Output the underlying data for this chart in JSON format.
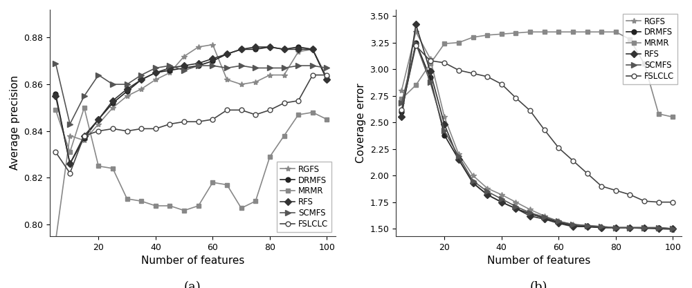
{
  "x": [
    5,
    10,
    15,
    20,
    25,
    30,
    35,
    40,
    45,
    50,
    55,
    60,
    65,
    70,
    75,
    80,
    85,
    90,
    95,
    100
  ],
  "left": {
    "ylabel": "Average precision",
    "xlabel": "Number of features",
    "ylim": [
      0.795,
      0.892
    ],
    "yticks": [
      0.8,
      0.82,
      0.84,
      0.86,
      0.88
    ],
    "caption": "(a)",
    "series": {
      "RGFS": {
        "color": "#888888",
        "marker": "*",
        "markersize": 6,
        "linewidth": 1.2,
        "markerfacecolor": "#888888",
        "values": [
          0.793,
          0.838,
          0.836,
          0.843,
          0.85,
          0.855,
          0.858,
          0.862,
          0.865,
          0.872,
          0.876,
          0.877,
          0.862,
          0.86,
          0.861,
          0.864,
          0.864,
          0.874,
          0.875,
          0.863
        ]
      },
      "DRMFS": {
        "color": "#222222",
        "marker": "o",
        "markersize": 5,
        "linewidth": 1.2,
        "markerfacecolor": "#222222",
        "values": [
          0.856,
          0.826,
          0.837,
          0.845,
          0.852,
          0.857,
          0.862,
          0.865,
          0.866,
          0.867,
          0.868,
          0.87,
          0.873,
          0.875,
          0.875,
          0.876,
          0.875,
          0.876,
          0.875,
          0.862
        ]
      },
      "MRMR": {
        "color": "#888888",
        "marker": "s",
        "markersize": 5,
        "linewidth": 1.2,
        "markerfacecolor": "#888888",
        "values": [
          0.849,
          0.831,
          0.85,
          0.825,
          0.824,
          0.811,
          0.81,
          0.808,
          0.808,
          0.806,
          0.808,
          0.818,
          0.817,
          0.807,
          0.81,
          0.829,
          0.838,
          0.847,
          0.848,
          0.845
        ]
      },
      "RFS": {
        "color": "#333333",
        "marker": "D",
        "markersize": 5,
        "linewidth": 1.2,
        "markerfacecolor": "#333333",
        "values": [
          0.855,
          0.826,
          0.838,
          0.845,
          0.853,
          0.858,
          0.862,
          0.865,
          0.867,
          0.868,
          0.869,
          0.871,
          0.873,
          0.875,
          0.876,
          0.876,
          0.875,
          0.875,
          0.875,
          0.862
        ]
      },
      "SCMFS": {
        "color": "#555555",
        "marker": ">",
        "markersize": 6,
        "linewidth": 1.2,
        "markerfacecolor": "#555555",
        "values": [
          0.869,
          0.843,
          0.855,
          0.864,
          0.86,
          0.86,
          0.864,
          0.867,
          0.868,
          0.866,
          0.868,
          0.868,
          0.867,
          0.868,
          0.867,
          0.867,
          0.867,
          0.868,
          0.868,
          0.867
        ]
      },
      "FSLCLC": {
        "color": "#444444",
        "marker": "o",
        "markersize": 5,
        "linewidth": 1.2,
        "markerfacecolor": "white",
        "values": [
          0.831,
          0.822,
          0.838,
          0.84,
          0.841,
          0.84,
          0.841,
          0.841,
          0.843,
          0.844,
          0.844,
          0.845,
          0.849,
          0.849,
          0.847,
          0.849,
          0.852,
          0.853,
          0.864,
          0.864
        ]
      }
    }
  },
  "right": {
    "ylabel": "Coverage error",
    "xlabel": "Number of features",
    "ylim": [
      1.43,
      3.56
    ],
    "yticks": [
      1.5,
      1.75,
      2.0,
      2.25,
      2.5,
      2.75,
      3.0,
      3.25,
      3.5
    ],
    "caption": "(b)",
    "series": {
      "RGFS": {
        "color": "#888888",
        "marker": "*",
        "markersize": 6,
        "linewidth": 1.2,
        "markerfacecolor": "#888888",
        "values": [
          2.8,
          3.35,
          3.1,
          2.55,
          2.2,
          2.0,
          1.88,
          1.82,
          1.75,
          1.68,
          1.62,
          1.57,
          1.54,
          1.53,
          1.52,
          1.51,
          1.51,
          1.5,
          1.5,
          1.49
        ]
      },
      "DRMFS": {
        "color": "#222222",
        "marker": "o",
        "markersize": 5,
        "linewidth": 1.2,
        "markerfacecolor": "#222222",
        "values": [
          2.6,
          3.25,
          2.92,
          2.38,
          2.15,
          1.93,
          1.82,
          1.75,
          1.69,
          1.64,
          1.6,
          1.56,
          1.53,
          1.52,
          1.51,
          1.51,
          1.51,
          1.51,
          1.51,
          1.5
        ]
      },
      "MRMR": {
        "color": "#888888",
        "marker": "s",
        "markersize": 5,
        "linewidth": 1.2,
        "markerfacecolor": "#888888",
        "values": [
          2.72,
          2.85,
          3.05,
          3.24,
          3.25,
          3.3,
          3.32,
          3.33,
          3.34,
          3.35,
          3.35,
          3.35,
          3.35,
          3.35,
          3.35,
          3.35,
          3.28,
          3.05,
          2.58,
          2.55
        ]
      },
      "RFS": {
        "color": "#333333",
        "marker": "D",
        "markersize": 5,
        "linewidth": 1.2,
        "markerfacecolor": "#333333",
        "values": [
          2.55,
          3.42,
          2.98,
          2.48,
          2.15,
          1.93,
          1.82,
          1.75,
          1.69,
          1.62,
          1.59,
          1.55,
          1.52,
          1.52,
          1.51,
          1.51,
          1.51,
          1.51,
          1.5,
          1.5
        ]
      },
      "SCMFS": {
        "color": "#555555",
        "marker": ">",
        "markersize": 6,
        "linewidth": 1.2,
        "markerfacecolor": "#555555",
        "values": [
          2.68,
          3.24,
          2.88,
          2.42,
          2.18,
          1.95,
          1.85,
          1.78,
          1.71,
          1.65,
          1.61,
          1.57,
          1.54,
          1.53,
          1.52,
          1.51,
          1.51,
          1.51,
          1.51,
          1.5
        ]
      },
      "FSLCLC": {
        "color": "#444444",
        "marker": "o",
        "markersize": 5,
        "linewidth": 1.2,
        "markerfacecolor": "white",
        "values": [
          2.62,
          3.22,
          3.08,
          3.06,
          2.99,
          2.96,
          2.93,
          2.86,
          2.73,
          2.61,
          2.43,
          2.26,
          2.14,
          2.02,
          1.9,
          1.86,
          1.82,
          1.76,
          1.75,
          1.75
        ]
      }
    }
  },
  "legend_order": [
    "RGFS",
    "DRMFS",
    "MRMR",
    "RFS",
    "SCMFS",
    "FSLCLC"
  ],
  "figure_width": 10.0,
  "figure_height": 4.17,
  "background_color": "#ffffff"
}
